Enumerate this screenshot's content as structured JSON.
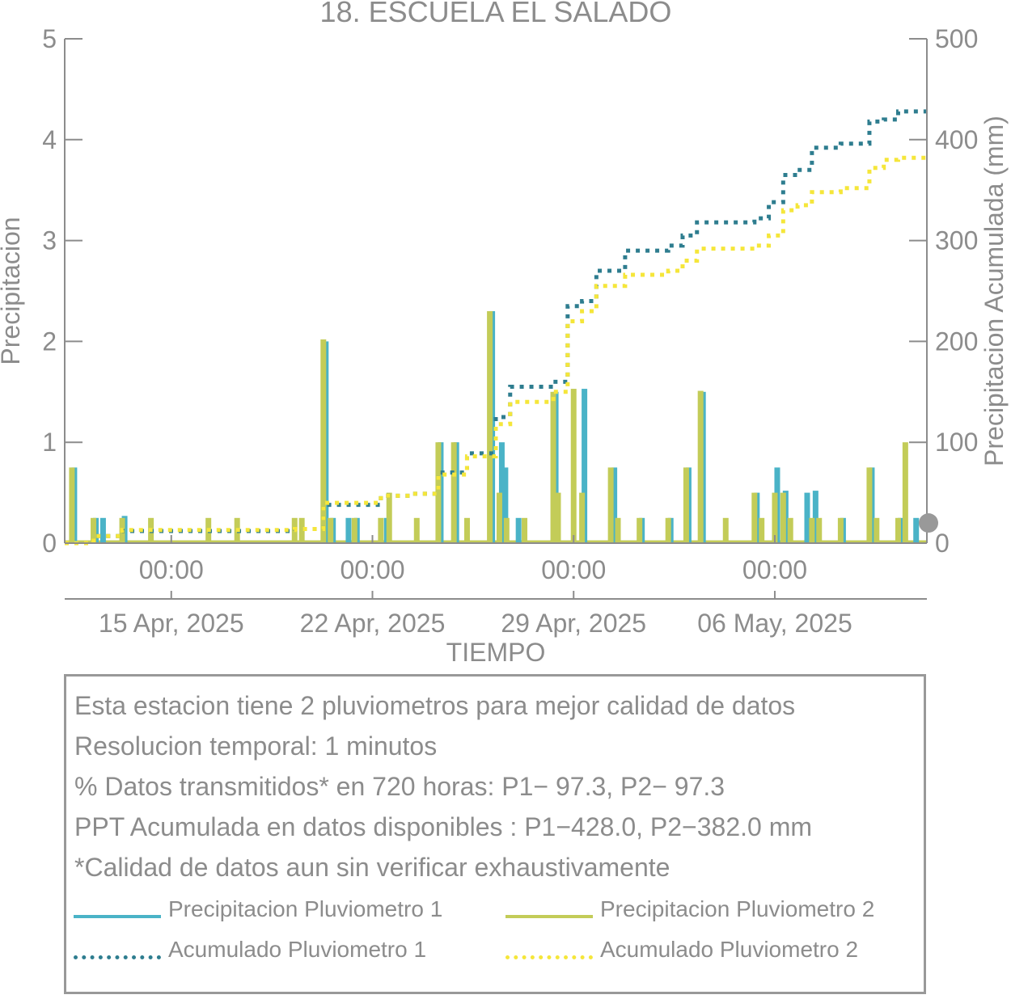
{
  "title": "18. ESCUELA EL SALADO",
  "colors": {
    "p1": "#4ab3c7",
    "p2": "#c3cc58",
    "acc1": "#2e7d8f",
    "acc2": "#f5e63a",
    "axis": "#8c8c8c",
    "marker": "#999999"
  },
  "chart_data": {
    "type": "bar",
    "xlabel": "TIEMPO",
    "ylabel_left": "Precipitacion",
    "ylabel_right": "Precipitacion Acumulada (mm)",
    "ylim_left": [
      0,
      5
    ],
    "ylim_right": [
      0,
      500
    ],
    "xlim": [
      "2025-04-11T07:00",
      "2025-05-11T07:00"
    ],
    "yticks_left": [
      "0",
      "1",
      "2",
      "3",
      "4",
      "5"
    ],
    "yticks_right": [
      "0",
      "100",
      "200",
      "300",
      "400",
      "500"
    ],
    "xticks": [
      {
        "date": "2025-04-15T00:00",
        "time": "00:00",
        "label": "15 Apr, 2025"
      },
      {
        "date": "2025-04-22T00:00",
        "time": "00:00",
        "label": "22 Apr, 2025"
      },
      {
        "date": "2025-04-29T00:00",
        "time": "00:00",
        "label": "29 Apr, 2025"
      },
      {
        "date": "2025-05-06T00:00",
        "time": "00:00",
        "label": "06 May, 2025"
      }
    ],
    "series_bars": [
      {
        "name": "Precipitacion Pluviometro 1",
        "points": [
          [
            "2025-04-11T13:00",
            0.75
          ],
          [
            "2025-04-12T07:00",
            0.25
          ],
          [
            "2025-04-12T13:00",
            0.25
          ],
          [
            "2025-04-13T07:00",
            0.27
          ],
          [
            "2025-04-20T07:00",
            2.0
          ],
          [
            "2025-04-20T13:00",
            0.25
          ],
          [
            "2025-04-21T02:00",
            0.25
          ],
          [
            "2025-04-21T09:00",
            0.25
          ],
          [
            "2025-04-22T10:00",
            0.25
          ],
          [
            "2025-04-24T07:00",
            1.0
          ],
          [
            "2025-04-24T20:00",
            1.0
          ],
          [
            "2025-04-26T02:00",
            2.3
          ],
          [
            "2025-04-26T10:00",
            1.0
          ],
          [
            "2025-04-26T13:00",
            0.75
          ],
          [
            "2025-04-27T00:00",
            0.25
          ],
          [
            "2025-04-28T07:00",
            1.5
          ],
          [
            "2025-04-29T07:00",
            1.53
          ],
          [
            "2025-04-30T08:00",
            0.75
          ],
          [
            "2025-05-01T07:00",
            0.25
          ],
          [
            "2025-05-02T07:00",
            0.25
          ],
          [
            "2025-05-02T22:00",
            0.75
          ],
          [
            "2025-05-03T10:00",
            1.5
          ],
          [
            "2025-05-05T07:00",
            0.5
          ],
          [
            "2025-05-06T00:00",
            0.75
          ],
          [
            "2025-05-06T07:00",
            0.52
          ],
          [
            "2025-05-07T01:00",
            0.5
          ],
          [
            "2025-05-07T08:00",
            0.52
          ],
          [
            "2025-05-08T07:00",
            0.25
          ],
          [
            "2025-05-09T07:00",
            0.75
          ],
          [
            "2025-05-10T07:00",
            0.25
          ],
          [
            "2025-05-10T20:00",
            0.25
          ]
        ]
      },
      {
        "name": "Precipitacion Pluviometro 2",
        "points": [
          [
            "2025-04-11T13:00",
            0.75
          ],
          [
            "2025-04-12T07:00",
            0.25
          ],
          [
            "2025-04-13T07:00",
            0.25
          ],
          [
            "2025-04-14T07:00",
            0.25
          ],
          [
            "2025-04-16T07:00",
            0.25
          ],
          [
            "2025-04-17T07:00",
            0.25
          ],
          [
            "2025-04-19T07:00",
            0.25
          ],
          [
            "2025-04-19T13:00",
            0.25
          ],
          [
            "2025-04-20T07:00",
            2.02
          ],
          [
            "2025-04-20T13:00",
            0.25
          ],
          [
            "2025-04-21T09:00",
            0.25
          ],
          [
            "2025-04-22T07:00",
            0.25
          ],
          [
            "2025-04-22T14:00",
            0.5
          ],
          [
            "2025-04-23T13:00",
            0.25
          ],
          [
            "2025-04-24T07:00",
            1.0
          ],
          [
            "2025-04-24T20:00",
            1.0
          ],
          [
            "2025-04-25T07:00",
            0.25
          ],
          [
            "2025-04-26T02:00",
            2.3
          ],
          [
            "2025-04-26T10:00",
            0.5
          ],
          [
            "2025-04-26T16:00",
            0.25
          ],
          [
            "2025-04-27T07:00",
            0.25
          ],
          [
            "2025-04-28T07:00",
            1.5
          ],
          [
            "2025-04-28T11:00",
            0.5
          ],
          [
            "2025-04-29T00:00",
            1.53
          ],
          [
            "2025-04-29T07:00",
            0.5
          ],
          [
            "2025-04-30T07:00",
            0.75
          ],
          [
            "2025-04-30T13:00",
            0.25
          ],
          [
            "2025-05-01T07:00",
            0.25
          ],
          [
            "2025-05-02T07:00",
            0.25
          ],
          [
            "2025-05-02T22:00",
            0.75
          ],
          [
            "2025-05-03T10:00",
            1.51
          ],
          [
            "2025-05-04T07:00",
            0.25
          ],
          [
            "2025-05-05T07:00",
            0.5
          ],
          [
            "2025-05-05T13:00",
            0.25
          ],
          [
            "2025-05-06T00:00",
            0.5
          ],
          [
            "2025-05-06T07:00",
            0.5
          ],
          [
            "2025-05-06T13:00",
            0.25
          ],
          [
            "2025-05-07T07:00",
            0.25
          ],
          [
            "2025-05-07T13:00",
            0.25
          ],
          [
            "2025-05-08T07:00",
            0.25
          ],
          [
            "2025-05-09T07:00",
            0.75
          ],
          [
            "2025-05-09T13:00",
            0.25
          ],
          [
            "2025-05-10T07:00",
            0.25
          ],
          [
            "2025-05-10T13:00",
            1.0
          ]
        ]
      }
    ],
    "series_cumulative": [
      {
        "name": "Acumulado Pluviometro 1",
        "points": [
          [
            "2025-04-11T07:00",
            0
          ],
          [
            "2025-04-12T07:00",
            7
          ],
          [
            "2025-04-13T07:00",
            12
          ],
          [
            "2025-04-19T07:00",
            14
          ],
          [
            "2025-04-20T07:00",
            38
          ],
          [
            "2025-04-22T07:00",
            47
          ],
          [
            "2025-04-23T07:00",
            49
          ],
          [
            "2025-04-24T07:00",
            70
          ],
          [
            "2025-04-25T07:00",
            89
          ],
          [
            "2025-04-26T07:00",
            125
          ],
          [
            "2025-04-26T19:00",
            155
          ],
          [
            "2025-04-28T07:00",
            160
          ],
          [
            "2025-04-28T19:00",
            235
          ],
          [
            "2025-04-29T07:00",
            240
          ],
          [
            "2025-04-29T19:00",
            270
          ],
          [
            "2025-04-30T19:00",
            290
          ],
          [
            "2025-05-02T07:00",
            295
          ],
          [
            "2025-05-02T19:00",
            305
          ],
          [
            "2025-05-03T07:00",
            318
          ],
          [
            "2025-05-05T07:00",
            322
          ],
          [
            "2025-05-05T19:00",
            338
          ],
          [
            "2025-05-06T07:00",
            365
          ],
          [
            "2025-05-06T19:00",
            370
          ],
          [
            "2025-05-07T07:00",
            392
          ],
          [
            "2025-05-08T07:00",
            396
          ],
          [
            "2025-05-09T07:00",
            418
          ],
          [
            "2025-05-09T19:00",
            420
          ],
          [
            "2025-05-10T07:00",
            428
          ],
          [
            "2025-05-11T07:00",
            428
          ]
        ]
      },
      {
        "name": "Acumulado Pluviometro 2",
        "points": [
          [
            "2025-04-11T07:00",
            0
          ],
          [
            "2025-04-12T07:00",
            7
          ],
          [
            "2025-04-13T07:00",
            13
          ],
          [
            "2025-04-19T07:00",
            14
          ],
          [
            "2025-04-20T07:00",
            40
          ],
          [
            "2025-04-22T07:00",
            47
          ],
          [
            "2025-04-23T07:00",
            49
          ],
          [
            "2025-04-24T07:00",
            68
          ],
          [
            "2025-04-25T07:00",
            86
          ],
          [
            "2025-04-26T07:00",
            118
          ],
          [
            "2025-04-26T19:00",
            140
          ],
          [
            "2025-04-28T07:00",
            150
          ],
          [
            "2025-04-28T19:00",
            220
          ],
          [
            "2025-04-29T07:00",
            230
          ],
          [
            "2025-04-29T19:00",
            255
          ],
          [
            "2025-04-30T19:00",
            266
          ],
          [
            "2025-05-02T07:00",
            270
          ],
          [
            "2025-05-02T19:00",
            280
          ],
          [
            "2025-05-03T07:00",
            292
          ],
          [
            "2025-05-05T07:00",
            295
          ],
          [
            "2025-05-05T19:00",
            305
          ],
          [
            "2025-05-06T07:00",
            330
          ],
          [
            "2025-05-06T19:00",
            335
          ],
          [
            "2025-05-07T07:00",
            348
          ],
          [
            "2025-05-08T07:00",
            352
          ],
          [
            "2025-05-09T07:00",
            372
          ],
          [
            "2025-05-09T19:00",
            380
          ],
          [
            "2025-05-10T07:00",
            382
          ],
          [
            "2025-05-11T07:00",
            382
          ]
        ]
      }
    ],
    "marker_value": 20
  },
  "info": {
    "line1": "Esta estacion tiene 2 pluviometros para mejor calidad de datos",
    "line2": "Resolucion temporal: 1 minutos",
    "line3": "% Datos transmitidos* en 720 horas: P1− 97.3, P2− 97.3",
    "line4": "PPT Acumulada en datos disponibles : P1−428.0, P2−382.0 mm",
    "line5": "*Calidad de datos aun sin verificar exhaustivamente"
  },
  "legend": {
    "p1": "Precipitacion Pluviometro 1",
    "p2": "Precipitacion Pluviometro 2",
    "acc1": "Acumulado Pluviometro 1",
    "acc2": "Acumulado Pluviometro 2"
  }
}
